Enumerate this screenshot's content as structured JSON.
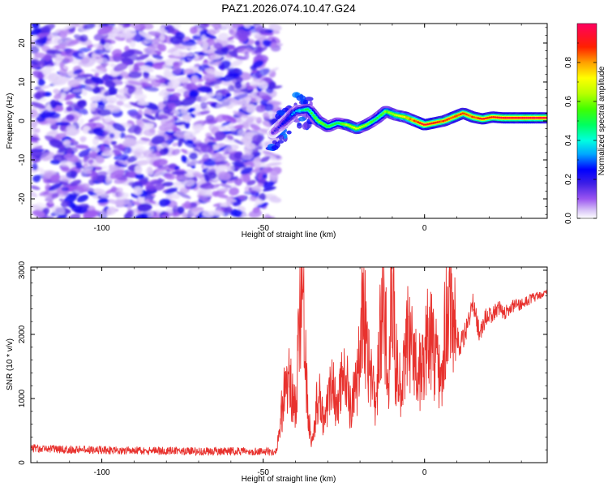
{
  "figure_title": "PAZ1.2026.074.10.47.G24",
  "chart_data": [
    {
      "type": "heatmap",
      "title": "PAZ1.2026.074.10.47.G24",
      "xlabel": "Height of straight line (km)",
      "ylabel": "Frequency (Hz)",
      "xlim": [
        -122,
        38
      ],
      "ylim": [
        -25,
        25
      ],
      "xticks": [
        -100,
        -50,
        0
      ],
      "yticks": [
        -20,
        -10,
        0,
        10,
        20
      ],
      "noise_region_x": [
        -122,
        -46
      ],
      "signal_track": {
        "x": [
          -47,
          -43,
          -40,
          -36,
          -33,
          -30,
          -27,
          -24,
          -21,
          -18,
          -15,
          -12,
          -9,
          -6,
          -3,
          0,
          3,
          6,
          9,
          12,
          15,
          18,
          21,
          24,
          27,
          30,
          33,
          38
        ],
        "freq": [
          -3,
          0,
          2.5,
          3,
          0,
          -1.5,
          -0.5,
          -1,
          -2,
          -1,
          0.5,
          2.5,
          1.5,
          1,
          0,
          -1,
          -0.5,
          0,
          1,
          2,
          1,
          0.5,
          1,
          0.8,
          0.8,
          0.8,
          0.8,
          0.8
        ],
        "amplitude": [
          0.15,
          0.25,
          0.35,
          0.5,
          0.6,
          0.55,
          0.5,
          0.65,
          0.7,
          0.6,
          0.5,
          0.6,
          0.65,
          0.75,
          0.85,
          0.95,
          0.9,
          0.85,
          0.85,
          0.85,
          0.85,
          0.9,
          0.9,
          0.95,
          0.95,
          0.95,
          0.95,
          0.95
        ]
      },
      "colorbar": {
        "label": "Normalized spectral amplitude",
        "range": [
          0,
          1
        ],
        "ticks": [
          "0.0",
          "0.2",
          "0.4",
          "0.6",
          "0.8"
        ]
      }
    },
    {
      "type": "line",
      "xlabel": "Height of straight line (km)",
      "ylabel": "SNR (10 * v/v)",
      "xlim": [
        -122,
        38
      ],
      "ylim": [
        0,
        3050
      ],
      "xticks": [
        -100,
        -50,
        0
      ],
      "yticks": [
        0,
        1000,
        2000,
        3000
      ],
      "color": "#e8322e",
      "series": [
        {
          "name": "SNR",
          "x": [
            -122,
            -110,
            -100,
            -90,
            -80,
            -70,
            -60,
            -50,
            -46,
            -45,
            -44,
            -42,
            -40,
            -38,
            -36,
            -35,
            -33,
            -31,
            -29,
            -27,
            -25,
            -23,
            -21,
            -19,
            -17,
            -15,
            -13,
            -11,
            -10,
            -9,
            -7,
            -5,
            -3,
            -1,
            1,
            3,
            5,
            7,
            9,
            11,
            13,
            15,
            17,
            19,
            21,
            23,
            25,
            27,
            29,
            31,
            33,
            35,
            38
          ],
          "y": [
            200,
            180,
            170,
            160,
            160,
            150,
            150,
            150,
            140,
            500,
            900,
            1400,
            800,
            2900,
            700,
            300,
            1100,
            600,
            1300,
            800,
            1500,
            900,
            1200,
            2400,
            1400,
            800,
            2700,
            1300,
            3000,
            1600,
            1200,
            2000,
            1600,
            1400,
            2000,
            1700,
            1200,
            2700,
            2200,
            1800,
            2100,
            2500,
            2000,
            2300,
            2300,
            2400,
            2350,
            2450,
            2450,
            2500,
            2550,
            2600,
            2650
          ]
        }
      ]
    }
  ]
}
